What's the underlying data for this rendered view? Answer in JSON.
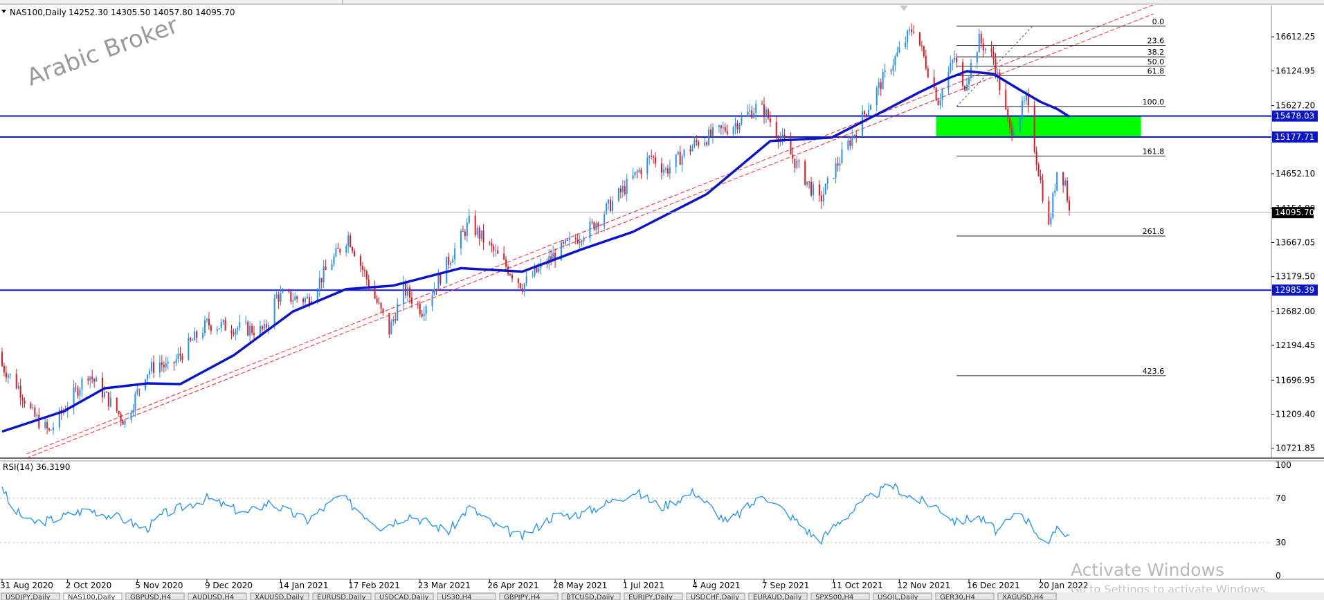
{
  "window": {
    "title": "NAS100,Daily",
    "ohlc": "14252.30 14305.50 14057.80 14095.70"
  },
  "watermark": "Arabic Broker",
  "activation": {
    "line1": "Activate Windows",
    "line2": "Go to Settings to activate Windows."
  },
  "indicator": {
    "title": "RSI(14) 36.3190",
    "levels": [
      "100",
      "70",
      "30",
      "0"
    ]
  },
  "bottom_tabs": [
    {
      "label": "USDJPY,Daily",
      "active": false
    },
    {
      "label": "NAS100,Daily",
      "active": true
    },
    {
      "label": "GBPUSD,H4",
      "active": false
    },
    {
      "label": "AUDUSD,H4",
      "active": false
    },
    {
      "label": "XAUUSD,Daily",
      "active": false
    },
    {
      "label": "EURUSD,Daily",
      "active": false
    },
    {
      "label": "USDCAD,Daily",
      "active": false
    },
    {
      "label": "US30,H4",
      "active": false
    },
    {
      "label": "GBPJPY,H4",
      "active": false
    },
    {
      "label": "BTCUSD,Daily",
      "active": false
    },
    {
      "label": "EURJPY,Daily",
      "active": false
    },
    {
      "label": "USDCHF,Daily",
      "active": false
    },
    {
      "label": "EURAUD,Daily",
      "active": false
    },
    {
      "label": "SPX500,H4",
      "active": false
    },
    {
      "label": "USOIL,Daily",
      "active": false
    },
    {
      "label": "GER30,H4",
      "active": false
    },
    {
      "label": "XAGUSD,H4",
      "active": false
    }
  ],
  "colors": {
    "bull": "#1e90ff",
    "bear": "#e8141c",
    "ma": "#0a14c8",
    "level": "#0a14c8",
    "zone": "#00ff00",
    "channel": "#ff2020",
    "rsi": "#1e90ff",
    "tag": "#0a14c8",
    "tag_price": "#000000"
  },
  "chart_data": [
    {
      "type": "candlestick",
      "title": "NAS100,Daily",
      "x_ticks": [
        "31 Aug 2020",
        "2 Oct 2020",
        "5 Nov 2020",
        "9 Dec 2020",
        "14 Jan 2021",
        "17 Feb 2021",
        "23 Mar 2021",
        "26 Apr 2021",
        "28 May 2021",
        "1 Jul 2021",
        "4 Aug 2021",
        "7 Sep 2021",
        "11 Oct 2021",
        "12 Nov 2021",
        "16 Dec 2021",
        "20 Jan 2022"
      ],
      "x_range": [
        "2020-08-31",
        "2022-02-03"
      ],
      "y_ticks": [
        "16612.25",
        "16124.95",
        "15627.20",
        "14652.10",
        "14154.80",
        "13667.05",
        "13179.50",
        "12682.00",
        "12194.45",
        "11696.95",
        "11209.40",
        "10721.85"
      ],
      "ylim": [
        10580,
        17060
      ],
      "last_price": "14095.70",
      "series": [
        {
          "name": "price_path",
          "x": [
            "2020-08-31",
            "2020-09-08",
            "2020-09-15",
            "2020-09-23",
            "2020-10-12",
            "2020-10-30",
            "2020-11-09",
            "2020-11-16",
            "2020-11-20",
            "2020-12-09",
            "2021-01-06",
            "2021-01-12",
            "2021-01-27",
            "2021-02-16",
            "2021-03-08",
            "2021-03-15",
            "2021-03-24",
            "2021-04-16",
            "2021-04-29",
            "2021-05-12",
            "2021-05-28",
            "2021-06-15",
            "2021-07-14",
            "2021-07-21",
            "2021-08-05",
            "2021-08-23",
            "2021-09-03",
            "2021-09-07",
            "2021-10-04",
            "2021-10-13",
            "2021-11-03",
            "2021-11-19",
            "2021-12-01",
            "2021-12-09",
            "2021-12-13",
            "2021-12-21",
            "2021-12-28",
            "2022-01-05",
            "2022-01-13",
            "2022-01-24",
            "2022-01-28",
            "2022-02-01",
            "2022-02-03"
          ],
          "y": [
            11900,
            11600,
            11200,
            10950,
            11800,
            11100,
            11800,
            11950,
            11850,
            12500,
            12400,
            12900,
            12850,
            13760,
            12400,
            13000,
            12700,
            13950,
            13500,
            13050,
            13500,
            13900,
            14900,
            14700,
            15100,
            15350,
            15600,
            15550,
            14250,
            14800,
            15950,
            16760,
            15700,
            16320,
            15850,
            16560,
            16300,
            15250,
            15700,
            13870,
            14700,
            14550,
            14095
          ]
        },
        {
          "name": "MA",
          "x": [
            "2020-08-31",
            "2020-09-30",
            "2020-10-20",
            "2020-11-10",
            "2020-11-26",
            "2020-12-22",
            "2021-01-20",
            "2021-02-15",
            "2021-03-10",
            "2021-04-12",
            "2021-05-12",
            "2021-06-10",
            "2021-07-05",
            "2021-08-10",
            "2021-09-10",
            "2021-10-10",
            "2021-11-05",
            "2021-11-22",
            "2021-12-06",
            "2021-12-15",
            "2021-12-28",
            "2022-01-10",
            "2022-01-20",
            "2022-01-28",
            "2022-02-03"
          ],
          "y": [
            10960,
            11250,
            11580,
            11650,
            11640,
            12050,
            12680,
            13000,
            13050,
            13300,
            13250,
            13570,
            13820,
            14360,
            15120,
            15170,
            15560,
            15820,
            16020,
            16120,
            16080,
            15850,
            15680,
            15580,
            15470
          ]
        }
      ],
      "horizontal_levels": [
        {
          "value": 15478.03,
          "label": "15478.03"
        },
        {
          "value": 15177.71,
          "label": "15177.71"
        },
        {
          "value": 12985.39,
          "label": "12985.39"
        }
      ],
      "zone": {
        "from": "2021-11-30",
        "to": "2022-03-10",
        "y": [
          15177.71,
          15478.03
        ]
      },
      "trend_channel": [
        {
          "x": [
            "2020-09-12",
            "2022-03-16"
          ],
          "y": [
            10580,
            16940
          ]
        },
        {
          "x": [
            "2020-09-12",
            "2022-03-16"
          ],
          "y": [
            10640,
            17070
          ]
        }
      ],
      "fibonacci": {
        "x_start": "2021-12-10",
        "x_end": "2022-03-22",
        "levels": [
          {
            "label": "0.0",
            "value": 16764
          },
          {
            "label": "23.6",
            "value": 16490
          },
          {
            "label": "38.2",
            "value": 16325
          },
          {
            "label": "50.0",
            "value": 16190
          },
          {
            "label": "61.8",
            "value": 16055
          },
          {
            "label": "100.0",
            "value": 15615
          },
          {
            "label": "161.8",
            "value": 14905
          },
          {
            "label": "261.8",
            "value": 13760
          },
          {
            "label": "423.6",
            "value": 11760
          }
        ]
      }
    },
    {
      "type": "line",
      "title": "RSI(14) 36.3190",
      "ylim": [
        0,
        100
      ],
      "levels": [
        70,
        30
      ],
      "series": [
        {
          "name": "RSI(14)",
          "x": [
            "2020-08-31",
            "2020-09-04",
            "2020-09-14",
            "2020-09-23",
            "2020-10-12",
            "2020-10-28",
            "2020-11-09",
            "2020-11-18",
            "2020-12-09",
            "2020-12-28",
            "2021-01-08",
            "2021-01-27",
            "2021-02-12",
            "2021-03-04",
            "2021-03-18",
            "2021-04-06",
            "2021-04-16",
            "2021-04-28",
            "2021-05-12",
            "2021-05-27",
            "2021-06-10",
            "2021-07-06",
            "2021-07-19",
            "2021-08-04",
            "2021-08-20",
            "2021-09-07",
            "2021-09-20",
            "2021-10-04",
            "2021-10-13",
            "2021-10-28",
            "2021-11-08",
            "2021-11-19",
            "2021-12-01",
            "2021-12-10",
            "2021-12-20",
            "2021-12-30",
            "2022-01-10",
            "2022-01-24",
            "2022-01-28",
            "2022-02-03"
          ],
          "y": [
            82,
            62,
            48,
            50,
            60,
            52,
            42,
            56,
            70,
            56,
            66,
            50,
            72,
            44,
            55,
            40,
            62,
            46,
            35,
            54,
            56,
            76,
            62,
            76,
            48,
            73,
            54,
            31,
            48,
            70,
            82,
            70,
            62,
            48,
            54,
            40,
            58,
            26,
            45,
            36
          ]
        }
      ]
    }
  ]
}
